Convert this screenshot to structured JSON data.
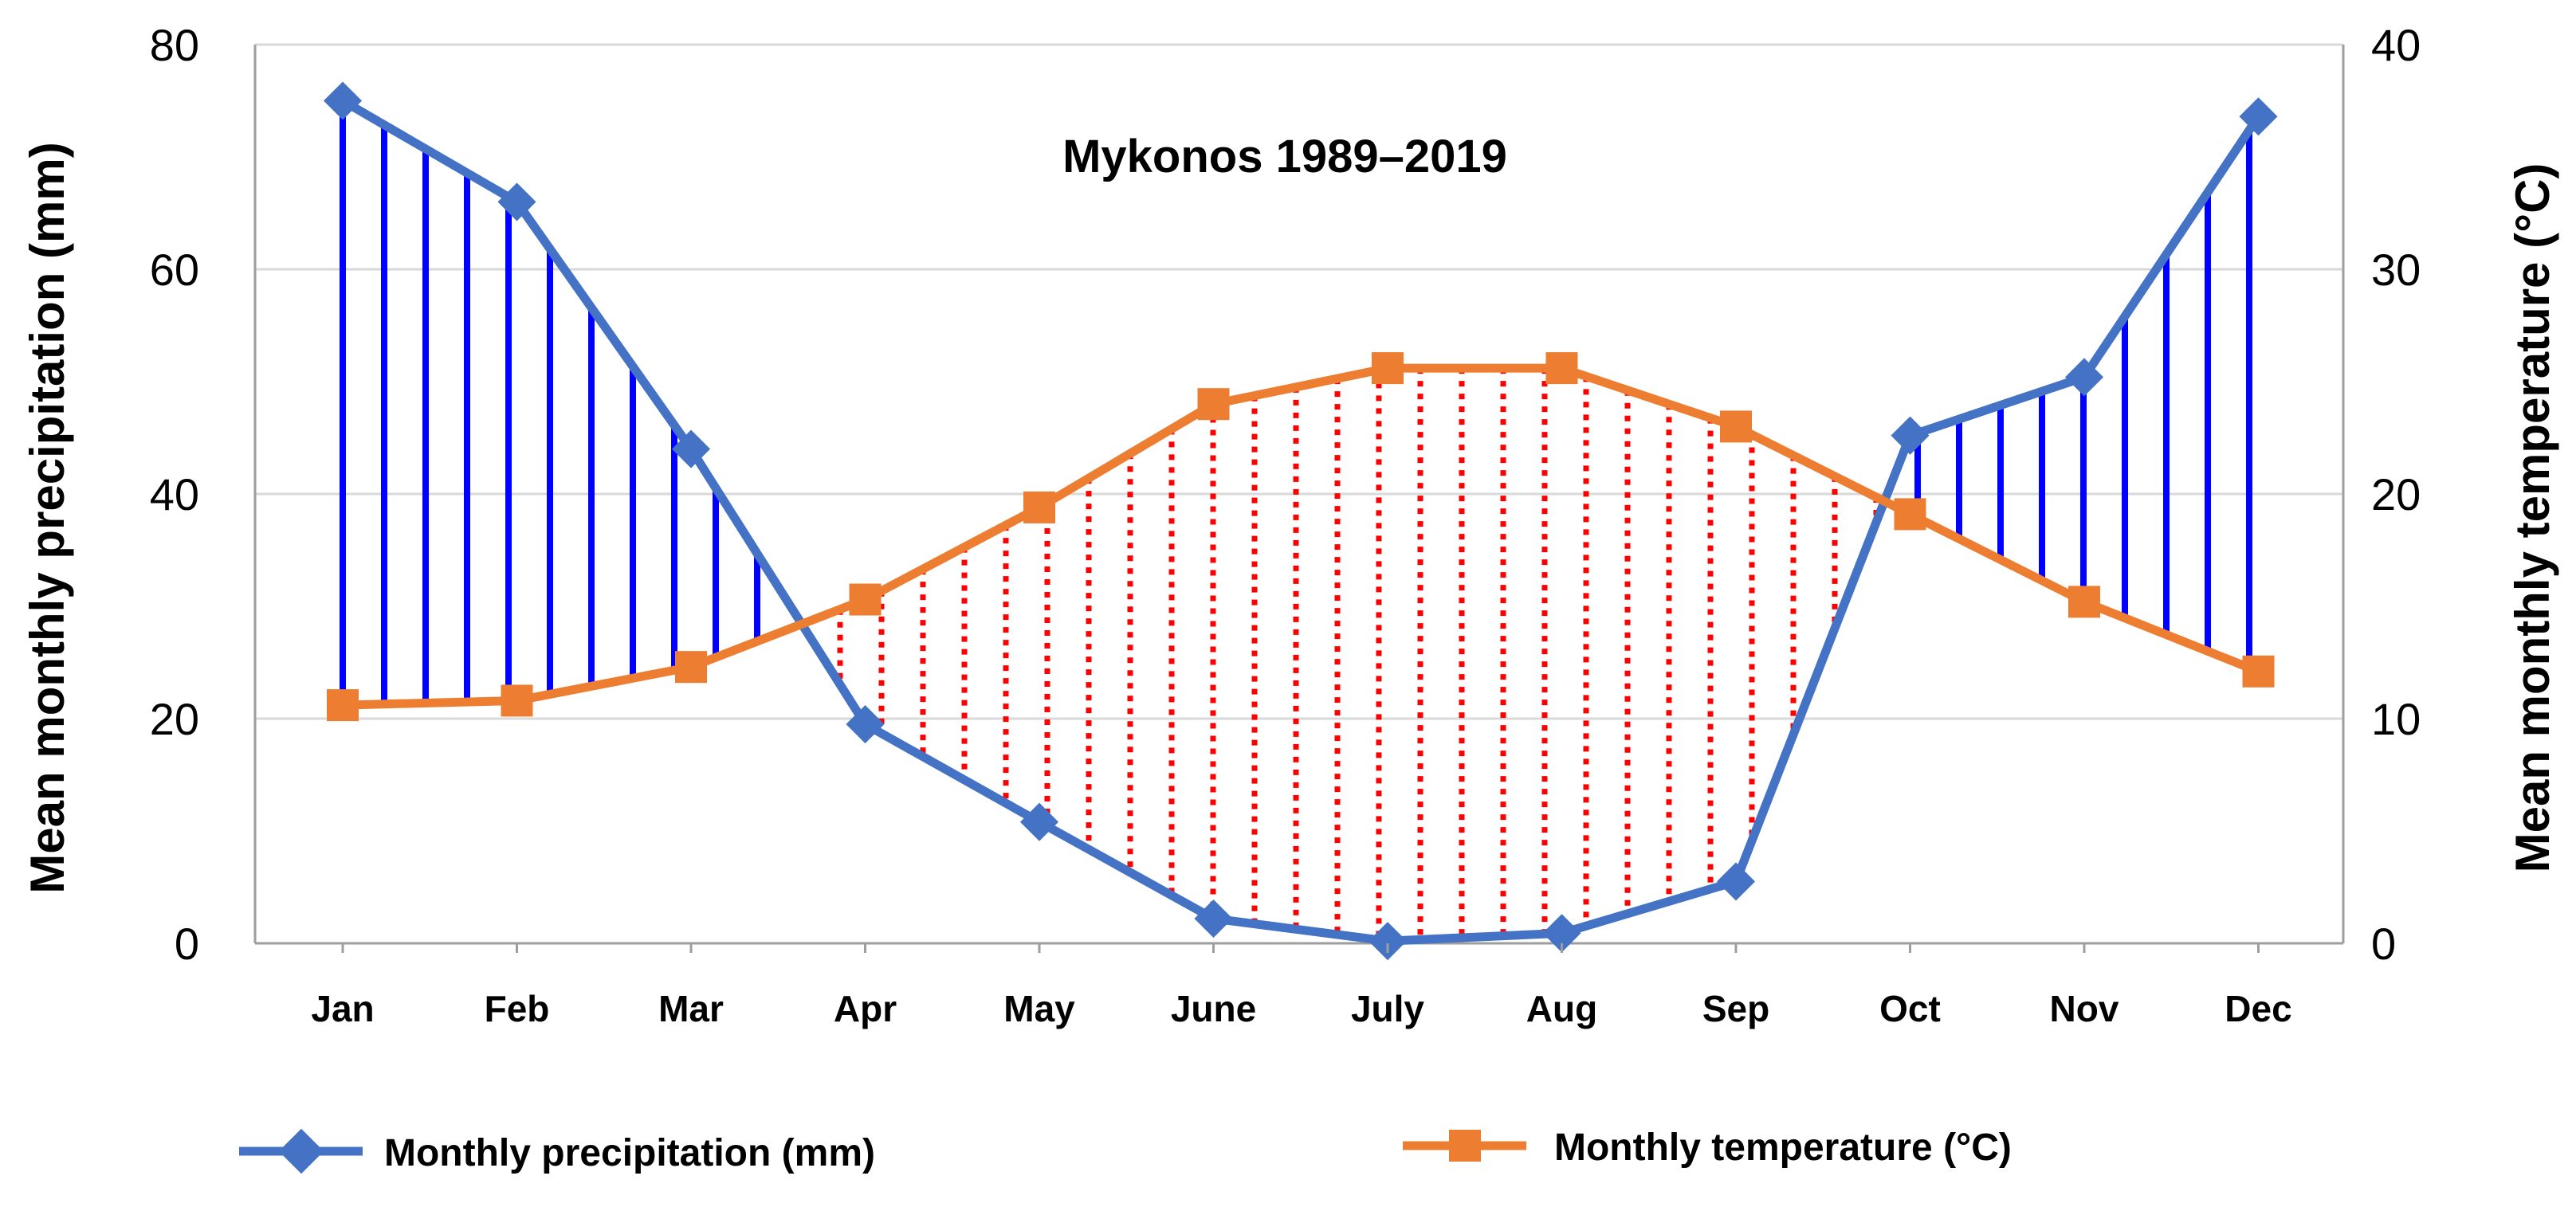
{
  "chart_data": {
    "type": "line",
    "title": "Mykonos 1989–2019",
    "categories": [
      "Jan",
      "Feb",
      "Mar",
      "Apr",
      "May",
      "June",
      "July",
      "Aug",
      "Sep",
      "Oct",
      "Nov",
      "Dec"
    ],
    "series": [
      {
        "name": "Monthly precipitation (mm)",
        "axis": "left",
        "color": "#4472C4",
        "marker": "diamond",
        "values": [
          75,
          66,
          44,
          19.5,
          10.8,
          2.2,
          0.2,
          0.9,
          5.5,
          45.2,
          50.4,
          73.6
        ]
      },
      {
        "name": "Monthly temperature (°C)",
        "axis": "right",
        "color": "#ED7D31",
        "marker": "square",
        "values": [
          10.6,
          10.8,
          12.3,
          15.3,
          19.4,
          24.0,
          25.6,
          25.6,
          23.0,
          19.1,
          15.2,
          12.1
        ]
      }
    ],
    "left_axis": {
      "label": "Mean monthly precipitation (mm)",
      "ylim": [
        0,
        80
      ],
      "ticks": [
        "0",
        "20",
        "40",
        "60",
        "80"
      ],
      "tick_values": [
        0,
        20,
        40,
        60,
        80
      ]
    },
    "right_axis": {
      "label": "Mean monthly temperature (°C)",
      "ylim": [
        0,
        40
      ],
      "ticks": [
        "0",
        "10",
        "20",
        "30",
        "40"
      ],
      "tick_values": [
        0,
        10,
        20,
        30,
        40
      ]
    },
    "hatching": {
      "humid_color": "#0000FF",
      "arid_color": "#FF0000"
    },
    "grid": true,
    "legend_position": "bottom"
  }
}
